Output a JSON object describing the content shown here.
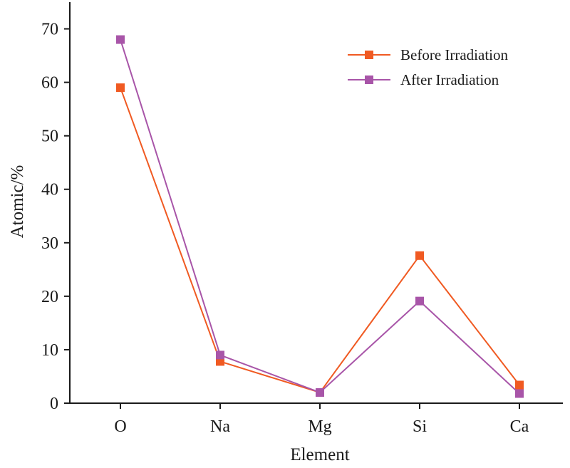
{
  "chart_data": {
    "type": "line",
    "categories": [
      "O",
      "Na",
      "Mg",
      "Si",
      "Ca"
    ],
    "series": [
      {
        "name": "Before Irradiation",
        "color": "#f05a22",
        "marker": "square",
        "values": [
          59.0,
          7.8,
          2.0,
          27.6,
          3.4
        ]
      },
      {
        "name": "After Irradiation",
        "color": "#a855a8",
        "marker": "square",
        "values": [
          68.0,
          9.0,
          2.0,
          19.1,
          1.8
        ]
      }
    ],
    "title": "",
    "xlabel": "Element",
    "ylabel": "Atomic/%",
    "ylim": [
      0,
      75
    ],
    "yticks": [
      0,
      10,
      20,
      30,
      40,
      50,
      60,
      70
    ],
    "grid": false,
    "legend": "top-right"
  }
}
